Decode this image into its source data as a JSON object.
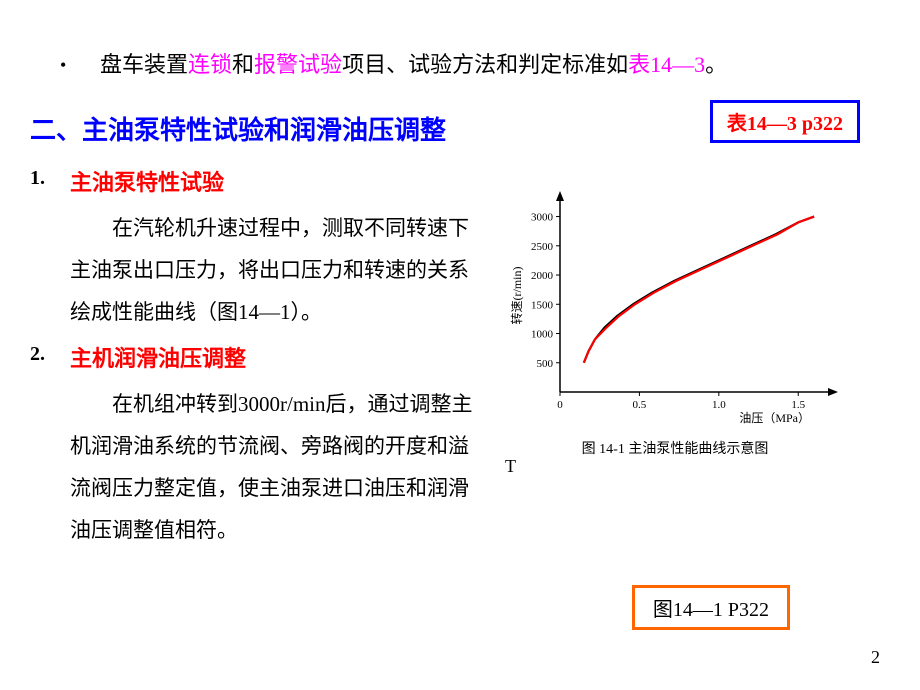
{
  "bullet": {
    "prefix": "盘车装置",
    "linkword": "连锁",
    "and": "和",
    "alarm": "报警试验",
    "middle": "项目、试验方法和判定标准如",
    "tableref": "表14—3",
    "period": "。"
  },
  "refbox": "表14—3 p322",
  "sectionTitle": "二、主油泵特性试验和润滑油压调整",
  "item1": {
    "num": "1.",
    "title": "主油泵特性试验",
    "para": "在汽轮机升速过程中，测取不同转速下主油泵出口压力，将出口压力和转速的关系绘成性能曲线（图14—1）。"
  },
  "item2": {
    "num": "2.",
    "title": "主机润滑油压调整",
    "para": "在机组冲转到3000r/min后，通过调整主机润滑油系统的节流阀、旁路阀的开度和溢流阀压力整定值，使主油泵进口油压和润滑油压调整值相符。"
  },
  "chart": {
    "ylabel": "转速(r/min)",
    "xlabel": "油压（MPa）",
    "caption": "图 14-1  主油泵性能曲线示意图",
    "xticks": [
      "0",
      "0.5",
      "1.0",
      "1.5"
    ],
    "yticks": [
      "500",
      "1000",
      "1500",
      "2000",
      "2500",
      "3000"
    ],
    "curve_color_red": "#ff0000",
    "curve_color_black": "#000000",
    "axis_color": "#000000",
    "bg": "#ffffff",
    "x_range": [
      0,
      1.7
    ],
    "y_range": [
      0,
      3300
    ],
    "points": [
      [
        0.15,
        500
      ],
      [
        0.18,
        700
      ],
      [
        0.22,
        900
      ],
      [
        0.28,
        1100
      ],
      [
        0.36,
        1300
      ],
      [
        0.46,
        1500
      ],
      [
        0.58,
        1700
      ],
      [
        0.72,
        1900
      ],
      [
        0.88,
        2100
      ],
      [
        1.04,
        2300
      ],
      [
        1.2,
        2500
      ],
      [
        1.36,
        2700
      ],
      [
        1.5,
        2900
      ],
      [
        1.6,
        3000
      ]
    ]
  },
  "figref": "图14—1  P322",
  "pagenum": "2",
  "tau": "T"
}
